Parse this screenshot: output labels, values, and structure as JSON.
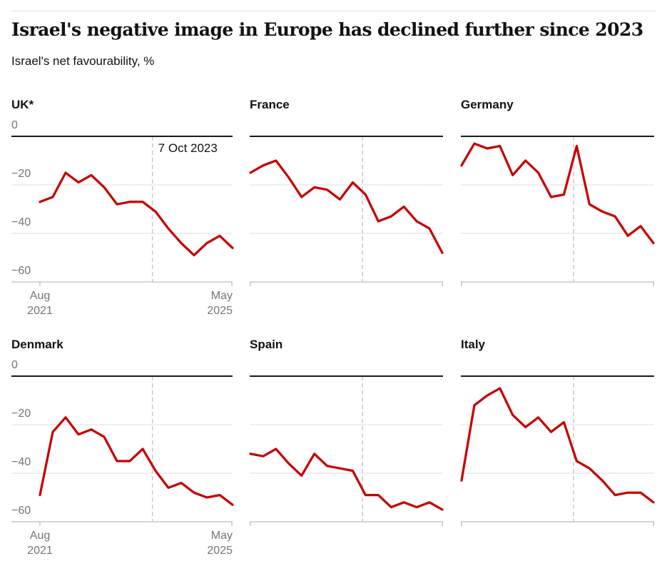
{
  "header": {
    "title": "Israel's negative image in Europe has declined further since 2023",
    "subtitle": "Israel's net favourability, %"
  },
  "chart_data": {
    "type": "line",
    "title": "Israel's negative image in Europe has declined further since 2023",
    "ylabel": "Israel's net favourability, %",
    "ylim": [
      0,
      -60
    ],
    "y_gridlines": [
      -20,
      -40
    ],
    "y_ticks": [
      {
        "value": 0,
        "label": "0"
      },
      {
        "value": -20,
        "label": "−20"
      },
      {
        "value": -40,
        "label": "−40"
      },
      {
        "value": -60,
        "label": "−60"
      }
    ],
    "x_axis": {
      "start_lines": [
        "Aug",
        "2021"
      ],
      "end_lines": [
        "May",
        "2025"
      ],
      "points_per_series": 16,
      "cadence": "quarterly"
    },
    "annotation": {
      "label": "7 Oct 2023",
      "x_fraction": 0.584
    },
    "colors": {
      "line": "#c70000",
      "zero_axis": "#1a1a1a",
      "gridline": "#dcdcdc",
      "bottom_axis": "#bdbdbd",
      "event_line": "#c9c9c9",
      "axis_label": "#757575"
    },
    "panels": [
      {
        "label": "UK*",
        "values": [
          -27,
          -25,
          -15,
          -19,
          -16,
          -21,
          -28,
          -27,
          -27,
          -31,
          -38,
          -44,
          -49,
          -44,
          -41,
          -46
        ],
        "y_axis_labels": true,
        "x_axis_labels": true,
        "annotation": true
      },
      {
        "label": "France",
        "values": [
          -15,
          -12,
          -10,
          -17,
          -25,
          -21,
          -22,
          -26,
          -19,
          -24,
          -35,
          -33,
          -29,
          -35,
          -38,
          -48
        ],
        "y_axis_labels": false,
        "x_axis_labels": false,
        "annotation": false
      },
      {
        "label": "Germany",
        "values": [
          -12,
          -3,
          -5,
          -4,
          -16,
          -10,
          -15,
          -25,
          -24,
          -4,
          -28,
          -31,
          -33,
          -41,
          -37,
          -44
        ],
        "y_axis_labels": false,
        "x_axis_labels": false,
        "annotation": false
      },
      {
        "label": "Denmark",
        "values": [
          -49,
          -23,
          -17,
          -24,
          -22,
          -25,
          -35,
          -35,
          -30,
          -39,
          -46,
          -44,
          -48,
          -50,
          -49,
          -53
        ],
        "y_axis_labels": true,
        "x_axis_labels": true,
        "annotation": false
      },
      {
        "label": "Spain",
        "values": [
          -32,
          -33,
          -30,
          -36,
          -41,
          -32,
          -37,
          -38,
          -39,
          -49,
          -49,
          -54,
          -52,
          -54,
          -52,
          -55
        ],
        "y_axis_labels": false,
        "x_axis_labels": false,
        "annotation": false
      },
      {
        "label": "Italy",
        "values": [
          -43,
          -12,
          -8,
          -5,
          -16,
          -21,
          -17,
          -23,
          -19,
          -35,
          -38,
          -43,
          -49,
          -48,
          -48,
          -52
        ],
        "y_axis_labels": false,
        "x_axis_labels": false,
        "annotation": false
      }
    ]
  }
}
